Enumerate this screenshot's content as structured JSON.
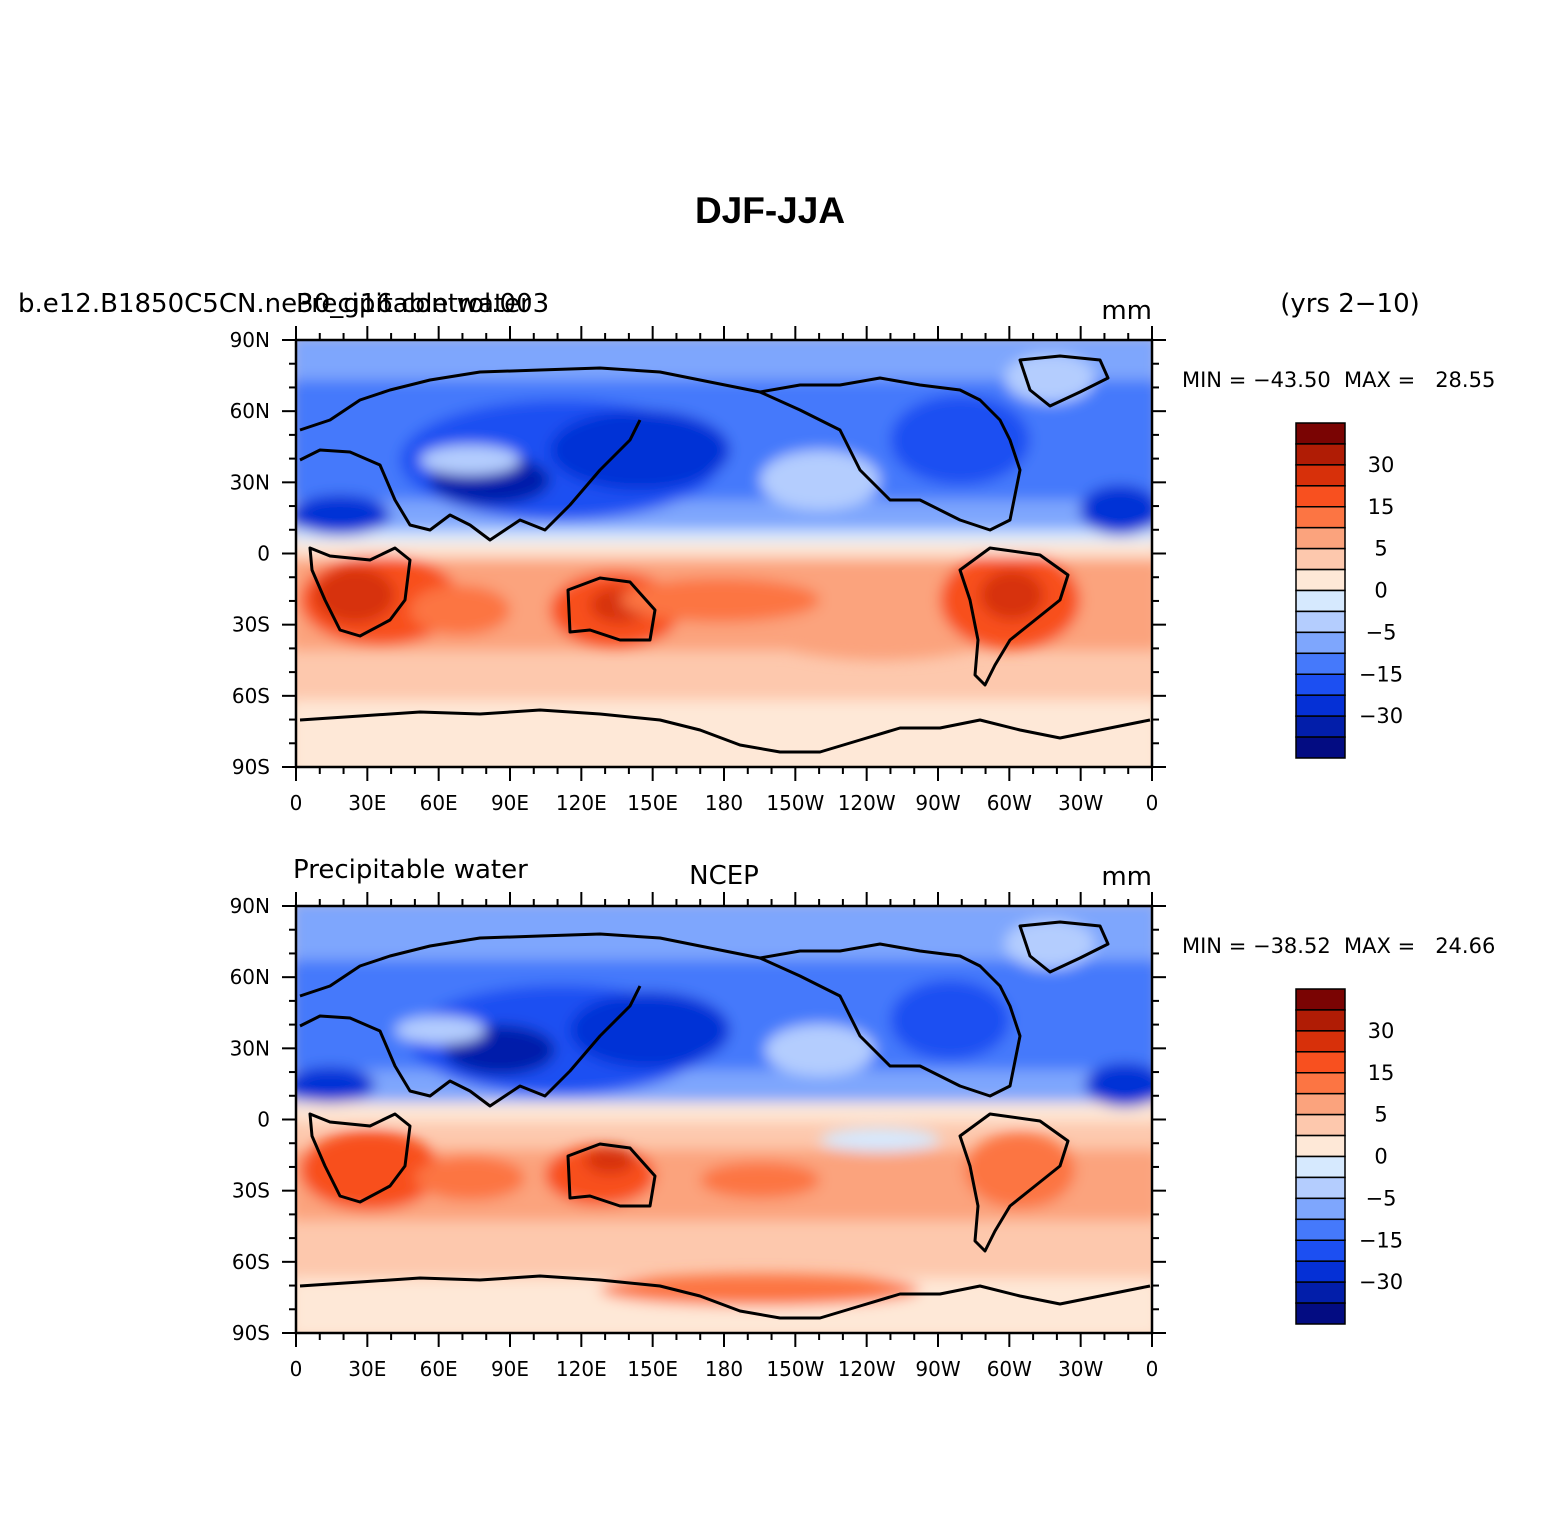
{
  "page": {
    "title": "DJF-JJA"
  },
  "panels": [
    {
      "id": "model",
      "left_label": "b.e12.B1850C5CN.ne30_g16.control.003",
      "overlay_label": "Precipitable water",
      "center_label": "",
      "units_label": "mm",
      "right_label": "(yrs 2−10)",
      "min_max": "MIN = −43.50  MAX =   28.55",
      "min": -43.5,
      "max": 28.55
    },
    {
      "id": "obs",
      "left_label": "Precipitable water",
      "overlay_label": "",
      "center_label": "NCEP",
      "units_label": "mm",
      "right_label": "",
      "min_max": "MIN = −38.52  MAX =   24.66",
      "min": -38.52,
      "max": 24.66
    }
  ],
  "axes": {
    "x_ticks": [
      "0",
      "30E",
      "60E",
      "90E",
      "120E",
      "150E",
      "180",
      "150W",
      "120W",
      "90W",
      "60W",
      "30W",
      "0"
    ],
    "y_ticks": [
      "90N",
      "60N",
      "30N",
      "0",
      "30S",
      "60S",
      "90S"
    ]
  },
  "colorbar": {
    "labels": [
      "30",
      "15",
      "5",
      "0",
      "−5",
      "−15",
      "−30"
    ],
    "colors": [
      "#7a0403",
      "#b01c05",
      "#d7300a",
      "#f8501f",
      "#fc7543",
      "#fba37d",
      "#fdc8ad",
      "#fee8d7",
      "#d6e9fe",
      "#b4cdfe",
      "#7ea6fd",
      "#4579fb",
      "#1c4ff2",
      "#0530d6",
      "#021eaa",
      "#030c82"
    ]
  }
}
